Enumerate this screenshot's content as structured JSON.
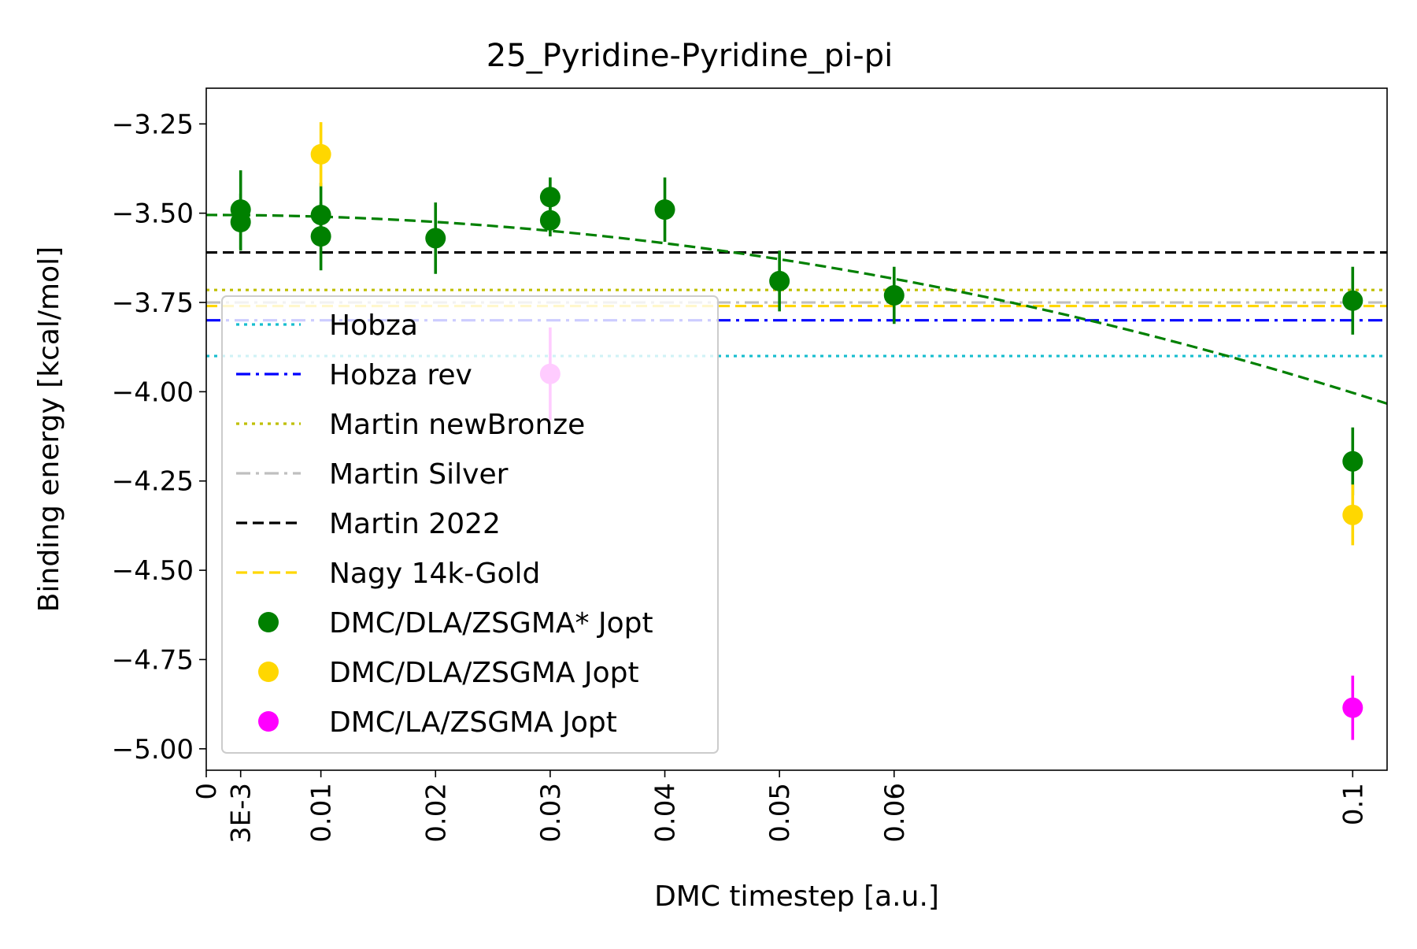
{
  "chart_data": {
    "type": "scatter",
    "title": "25_Pyridine-Pyridine_pi-pi",
    "xlabel": "DMC timestep [a.u.]",
    "ylabel": "Binding energy [kcal/mol]",
    "xlim": [
      0,
      0.103
    ],
    "ylim": [
      -5.06,
      -3.15
    ],
    "x_ticks": [
      {
        "value": 0,
        "label": "0"
      },
      {
        "value": 0.003,
        "label": "3E-3"
      },
      {
        "value": 0.01,
        "label": "0.01"
      },
      {
        "value": 0.02,
        "label": "0.02"
      },
      {
        "value": 0.03,
        "label": "0.03"
      },
      {
        "value": 0.04,
        "label": "0.04"
      },
      {
        "value": 0.05,
        "label": "0.05"
      },
      {
        "value": 0.06,
        "label": "0.06"
      },
      {
        "value": 0.1,
        "label": "0.1"
      }
    ],
    "y_ticks": [
      {
        "value": -3.25,
        "label": "−3.25"
      },
      {
        "value": -3.5,
        "label": "−3.50"
      },
      {
        "value": -3.75,
        "label": "−3.75"
      },
      {
        "value": -4.0,
        "label": "−4.00"
      },
      {
        "value": -4.25,
        "label": "−4.25"
      },
      {
        "value": -4.5,
        "label": "−4.50"
      },
      {
        "value": -4.75,
        "label": "−4.75"
      },
      {
        "value": -5.0,
        "label": "−5.00"
      }
    ],
    "grid": false,
    "legend_position": "lower-left",
    "reference_lines": [
      {
        "name": "Hobza",
        "y": -3.9,
        "color": "#17becf",
        "style": "dotted"
      },
      {
        "name": "Hobza rev",
        "y": -3.8,
        "color": "#0000ff",
        "style": "dashdot"
      },
      {
        "name": "Martin newBronze",
        "y": -3.715,
        "color": "#bfbf00",
        "style": "dotted"
      },
      {
        "name": "Martin Silver",
        "y": -3.75,
        "color": "#bfbfbf",
        "style": "dashdot"
      },
      {
        "name": "Martin 2022",
        "y": -3.61,
        "color": "#000000",
        "style": "dashed"
      },
      {
        "name": "Nagy 14k-Gold",
        "y": -3.76,
        "color": "#ffd700",
        "style": "dashed"
      }
    ],
    "series": [
      {
        "name": "DMC/DLA/ZSGMA* Jopt",
        "color": "#008000",
        "points": [
          {
            "x": 0.003,
            "y": -3.49,
            "err": 0.11
          },
          {
            "x": 0.003,
            "y": -3.525,
            "err": 0.08
          },
          {
            "x": 0.01,
            "y": -3.505,
            "err": 0.09
          },
          {
            "x": 0.01,
            "y": -3.565,
            "err": 0.095
          },
          {
            "x": 0.02,
            "y": -3.57,
            "err": 0.1
          },
          {
            "x": 0.03,
            "y": -3.455,
            "err": 0.055
          },
          {
            "x": 0.03,
            "y": -3.52,
            "err": 0.045
          },
          {
            "x": 0.04,
            "y": -3.49,
            "err": 0.09
          },
          {
            "x": 0.05,
            "y": -3.69,
            "err": 0.085
          },
          {
            "x": 0.06,
            "y": -3.73,
            "err": 0.08
          },
          {
            "x": 0.1,
            "y": -3.745,
            "err": 0.095
          },
          {
            "x": 0.1,
            "y": -4.195,
            "err": 0.095
          }
        ]
      },
      {
        "name": "DMC/DLA/ZSGMA Jopt",
        "color": "#ffd700",
        "points": [
          {
            "x": 0.01,
            "y": -3.335,
            "err": 0.09
          },
          {
            "x": 0.1,
            "y": -4.345,
            "err": 0.085
          }
        ]
      },
      {
        "name": "DMC/LA/ZSGMA Jopt",
        "color": "#ff00ff",
        "points": [
          {
            "x": 0.03,
            "y": -3.95,
            "err": 0.13
          },
          {
            "x": 0.1,
            "y": -4.885,
            "err": 0.09
          }
        ]
      }
    ],
    "fit": {
      "a": -3.505,
      "b": 0.02,
      "c": -50.0,
      "color": "#008000",
      "style": "dashed"
    }
  }
}
